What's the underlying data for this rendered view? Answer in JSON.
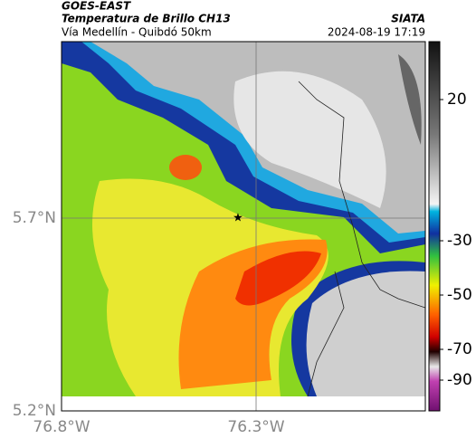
{
  "header": {
    "title": "GOES-EAST",
    "subtitle": "Temperatura de Brillo CH13",
    "region": "Vía Medellín - Quibdó 50km",
    "source": "SIATA",
    "datetime": "2024-08-19 17:19"
  },
  "axes": {
    "lat_labels": [
      "5.7°N",
      "5.2°N"
    ],
    "lon_labels": [
      "76.8°W",
      "76.3°W"
    ]
  },
  "colorbar": {
    "ticks": [
      20,
      -30,
      -50,
      -70,
      -90
    ]
  }
}
